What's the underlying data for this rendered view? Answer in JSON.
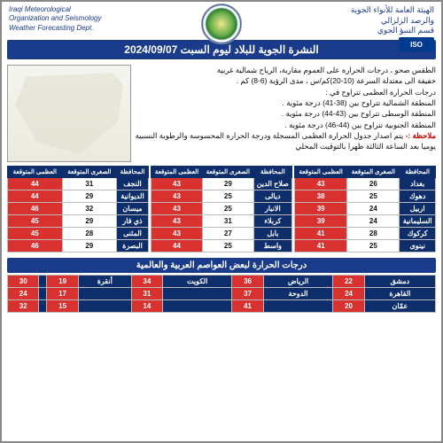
{
  "header": {
    "left_line1": "Iraqi Meteorological",
    "left_line2": "Organization and Seismology",
    "left_line3": "Weather Forecasting Dept.",
    "right_line1": "الهيئة العامة للأنواء الجوية",
    "right_line2": "والرصد الزلزالي",
    "right_line3": "قسم التنبؤ الجوي",
    "iso": "ISO"
  },
  "title": "النشرة الجوية للبلاد ليوم السبت 2024/09/07",
  "forecast": {
    "l1": "الطقس صحو ، درجات الحرارة على العموم مقاربة، الرياح شمالية غربية",
    "l2": "خفيفة الى معتدلة السرعة (10-20)كم/س ، مدى الرؤية (6-8) كم .",
    "l3": "درجات الحرارة العظمى تتراوح في :",
    "l4": "المنطقة الشمالية تتراوح بين (38-41) درجة مئوية .",
    "l5": "المنطقة الوسطى تتراوح بين (43-44) درجة مئوية .",
    "l6": "المنطقة الجنوبية تتراوح بين (44-46) درجة مئوية .",
    "note_label": "ملاحظة :-",
    "note": "يتم اصدار جدول الحرارة العظمى المسجلة ودرجة الحرارة المحسوسة والرطوبة النسبية يوميا بعد الساعة الثالثة ظهرا بالتوقيت المحلي"
  },
  "table_headers": {
    "gov": "المحافظة",
    "lo_exp": "الصغرى المتوقعة",
    "hi_rec": "العظمى المسجلة",
    "hi_exp": "العظمى المتوقعة"
  },
  "cols": {
    "c1": [
      {
        "gov": "بغداد",
        "lo": "26",
        "hi": "43"
      },
      {
        "gov": "دهوك",
        "lo": "25",
        "hi": "38"
      },
      {
        "gov": "اربيل",
        "lo": "24",
        "hi": "39"
      },
      {
        "gov": "السليمانية",
        "lo": "24",
        "hi": "39"
      },
      {
        "gov": "كركوك",
        "lo": "28",
        "hi": "41"
      },
      {
        "gov": "نينوى",
        "lo": "25",
        "hi": "41"
      }
    ],
    "c2": [
      {
        "gov": "صلاح الدين",
        "lo": "29",
        "hi": "43"
      },
      {
        "gov": "ديالى",
        "lo": "25",
        "hi": "43"
      },
      {
        "gov": "الانبار",
        "lo": "25",
        "hi": "43"
      },
      {
        "gov": "كربلاء",
        "lo": "31",
        "hi": "43"
      },
      {
        "gov": "بابل",
        "lo": "27",
        "hi": "43"
      },
      {
        "gov": "واسط",
        "lo": "25",
        "hi": "44"
      }
    ],
    "c3": [
      {
        "gov": "النجف",
        "lo": "31",
        "hi": "44"
      },
      {
        "gov": "الديوانية",
        "lo": "29",
        "hi": "44"
      },
      {
        "gov": "ميسان",
        "lo": "32",
        "hi": "46"
      },
      {
        "gov": "ذي قار",
        "lo": "29",
        "hi": "45"
      },
      {
        "gov": "المثنى",
        "lo": "28",
        "hi": "45"
      },
      {
        "gov": "البصرة",
        "lo": "29",
        "hi": "46"
      }
    ]
  },
  "world_title": "درجات الحرارة لبعض العواصم العربية والعالمية",
  "world": {
    "r1": [
      {
        "city": "دمشق",
        "hi": "22"
      },
      {
        "city": "الرياض",
        "hi": "36"
      },
      {
        "city": "الكويت",
        "hi": "34"
      },
      {
        "city": "أنقرة",
        "hi": "19"
      },
      {
        "city": "",
        "hi": "30"
      }
    ],
    "r2": [
      {
        "city": "القاهرة",
        "hi": "24"
      },
      {
        "city": "الدوحة",
        "hi": "37"
      },
      {
        "city": "",
        "hi": "31"
      },
      {
        "city": "",
        "hi": "17"
      },
      {
        "city": "",
        "hi": "24"
      }
    ],
    "r3": [
      {
        "city": "عمّان",
        "hi": "20"
      },
      {
        "city": "",
        "hi": "41"
      },
      {
        "city": "",
        "hi": "14"
      },
      {
        "city": "",
        "hi": "15"
      },
      {
        "city": "",
        "hi": "32"
      }
    ]
  },
  "colors": {
    "navy": "#1a3a8a",
    "darknavy": "#0d2d6b",
    "red": "#d93030",
    "notered": "#c00"
  }
}
